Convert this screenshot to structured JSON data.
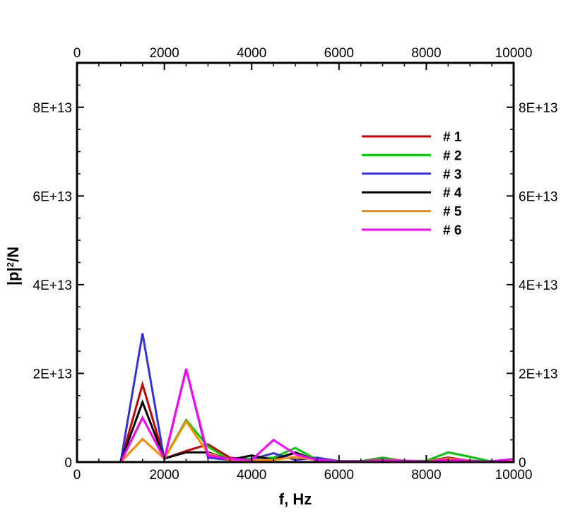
{
  "chart_data": {
    "type": "line",
    "xlabel": "f, Hz",
    "ylabel_main": "|p|",
    "ylabel_sup": "2",
    "ylabel_tail": "/N",
    "xlim": [
      0,
      10000
    ],
    "ylim": [
      0,
      90000000000000
    ],
    "x_ticks": [
      {
        "value": 0,
        "label": "0"
      },
      {
        "value": 2000,
        "label": "2000"
      },
      {
        "value": 4000,
        "label": "4000"
      },
      {
        "value": 6000,
        "label": "6000"
      },
      {
        "value": 8000,
        "label": "8000"
      },
      {
        "value": 10000,
        "label": "10000"
      }
    ],
    "y_ticks": [
      {
        "value": 0,
        "label": "0"
      },
      {
        "value": 20000000000000,
        "label": "2E+13"
      },
      {
        "value": 40000000000000,
        "label": "4E+13"
      },
      {
        "value": 60000000000000,
        "label": "6E+13"
      },
      {
        "value": 80000000000000,
        "label": "8E+13"
      }
    ],
    "grid": false,
    "legend_position": "top-right",
    "x": [
      0,
      500,
      1000,
      1500,
      2000,
      2500,
      3000,
      3500,
      4000,
      4500,
      5000,
      5500,
      6000,
      6500,
      7000,
      7500,
      8000,
      8500,
      9000,
      9500,
      10000
    ],
    "series": [
      {
        "name": "# 1",
        "color": "#cc0000",
        "values": [
          0,
          0,
          0,
          17500000000000.0,
          800000000000.0,
          2500000000000.0,
          4000000000000.0,
          1000000000000.0,
          500000000000.0,
          800000000000.0,
          2000000000000.0,
          500000000000.0,
          200000000000.0,
          100000000000.0,
          200000000000.0,
          200000000000.0,
          200000000000.0,
          1000000000000.0,
          300000000000.0,
          100000000000.0,
          300000000000.0
        ]
      },
      {
        "name": "# 2",
        "color": "#00cc00",
        "values": [
          0,
          0,
          0,
          10000000000000.0,
          800000000000.0,
          9500000000000.0,
          3500000000000.0,
          500000000000.0,
          800000000000.0,
          1000000000000.0,
          3200000000000.0,
          500000000000.0,
          200000000000.0,
          200000000000.0,
          1000000000000.0,
          200000000000.0,
          300000000000.0,
          2200000000000.0,
          1200000000000.0,
          100000000000.0,
          200000000000.0
        ]
      },
      {
        "name": "# 3",
        "color": "#3333dd",
        "values": [
          0,
          0,
          0,
          29000000000000.0,
          500000000000.0,
          21000000000000.0,
          1000000000000.0,
          500000000000.0,
          600000000000.0,
          2000000000000.0,
          500000000000.0,
          1000000000000.0,
          200000000000.0,
          200000000000.0,
          600000000000.0,
          300000000000.0,
          200000000000.0,
          500000000000.0,
          300000000000.0,
          200000000000.0,
          400000000000.0
        ]
      },
      {
        "name": "# 4",
        "color": "#000000",
        "values": [
          0,
          0,
          0,
          13500000000000.0,
          800000000000.0,
          2200000000000.0,
          2200000000000.0,
          500000000000.0,
          1500000000000.0,
          500000000000.0,
          2200000000000.0,
          300000000000.0,
          200000000000.0,
          200000000000.0,
          300000000000.0,
          200000000000.0,
          200000000000.0,
          500000000000.0,
          300000000000.0,
          100000000000.0,
          200000000000.0
        ]
      },
      {
        "name": "# 5",
        "color": "#ff8800",
        "values": [
          0,
          0,
          0,
          5200000000000.0,
          800000000000.0,
          9200000000000.0,
          2000000000000.0,
          500000000000.0,
          500000000000.0,
          500000000000.0,
          1200000000000.0,
          500000000000.0,
          200000000000.0,
          200000000000.0,
          500000000000.0,
          300000000000.0,
          200000000000.0,
          800000000000.0,
          300000000000.0,
          100000000000.0,
          300000000000.0
        ]
      },
      {
        "name": "# 6",
        "color": "#ff00ff",
        "values": [
          0,
          0,
          0,
          10000000000000.0,
          800000000000.0,
          21000000000000.0,
          1500000000000.0,
          800000000000.0,
          500000000000.0,
          5000000000000.0,
          1800000000000.0,
          500000000000.0,
          200000000000.0,
          200000000000.0,
          400000000000.0,
          300000000000.0,
          200000000000.0,
          500000000000.0,
          300000000000.0,
          200000000000.0,
          700000000000.0
        ]
      }
    ]
  }
}
